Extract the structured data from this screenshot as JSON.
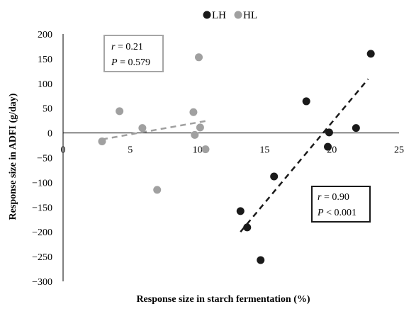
{
  "chart_data": {
    "type": "scatter",
    "xlabel": "Response size in starch fermentation (%)",
    "ylabel": "Response size  in ADFI (g/day)",
    "xlim": [
      0,
      25
    ],
    "ylim": [
      -300,
      200
    ],
    "x_ticks": [
      "0",
      "5",
      "10",
      "15",
      "20",
      "25"
    ],
    "y_ticks": [
      "200",
      "150",
      "100",
      "50",
      "0",
      "−50",
      "−100",
      "−150",
      "−200",
      "−250",
      "−300"
    ],
    "x_tick_values": [
      0,
      5,
      10,
      15,
      20,
      25
    ],
    "y_tick_values": [
      200,
      150,
      100,
      50,
      0,
      -50,
      -100,
      -150,
      -200,
      -250,
      -300
    ],
    "grid": false,
    "legend_position": "top-center",
    "series": [
      {
        "name": "LH",
        "color": "#1a1a1a",
        "points": [
          [
            13.2,
            -158
          ],
          [
            13.7,
            -191
          ],
          [
            14.7,
            -257
          ],
          [
            15.7,
            -88
          ],
          [
            18.1,
            64
          ],
          [
            19.8,
            1
          ],
          [
            19.7,
            -28
          ],
          [
            21.8,
            10
          ],
          [
            22.9,
            160
          ]
        ],
        "trendline": {
          "x": [
            13.2,
            22.7
          ],
          "y": [
            -200,
            109
          ],
          "style": "dashed",
          "color": "#1a1a1a"
        }
      },
      {
        "name": "HL",
        "color": "#a0a0a0",
        "points": [
          [
            2.9,
            -17
          ],
          [
            4.2,
            44
          ],
          [
            5.9,
            10
          ],
          [
            7.0,
            -115
          ],
          [
            9.7,
            42
          ],
          [
            9.8,
            -4
          ],
          [
            10.1,
            153
          ],
          [
            10.2,
            11
          ],
          [
            10.6,
            -33
          ]
        ],
        "trendline": {
          "x": [
            2.9,
            10.8
          ],
          "y": [
            -13,
            25
          ],
          "style": "dashed",
          "color": "#a0a0a0"
        }
      }
    ],
    "annotations": [
      {
        "series": "HL",
        "r_label": "r",
        "r_value": " = 0.21",
        "p_label": "P",
        "p_value": " = 0.579"
      },
      {
        "series": "LH",
        "r_label": "r",
        "r_value": " = 0.90",
        "p_label": "P",
        "p_value": " < 0.001"
      }
    ]
  }
}
